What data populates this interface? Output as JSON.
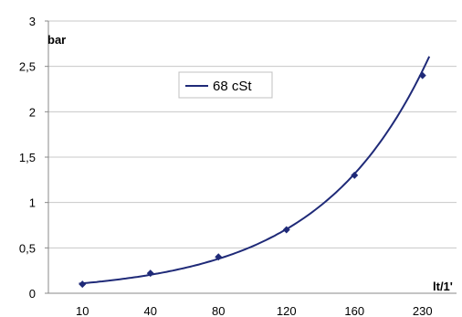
{
  "chart_data": {
    "type": "scatter",
    "title": "",
    "xlabel": "lt/1'",
    "ylabel": "bar",
    "x_ticks": [
      "10",
      "40",
      "80",
      "120",
      "160",
      "230"
    ],
    "y_ticks": [
      "0",
      "0,5",
      "1",
      "1,5",
      "2",
      "2,5",
      "3"
    ],
    "ylim": [
      0,
      3
    ],
    "grid": true,
    "legend_position": "top-left",
    "series": [
      {
        "name": "68 cSt",
        "points": [
          {
            "x": "10",
            "y": 0.1
          },
          {
            "x": "40",
            "y": 0.22
          },
          {
            "x": "80",
            "y": 0.4
          },
          {
            "x": "120",
            "y": 0.7
          },
          {
            "x": "160",
            "y": 1.3
          },
          {
            "x": "230",
            "y": 2.4
          }
        ],
        "trendline": "exponential"
      }
    ],
    "colors": {
      "series": "#1f2a78",
      "grid": "#c8c8c8",
      "axis": "#888888"
    }
  }
}
